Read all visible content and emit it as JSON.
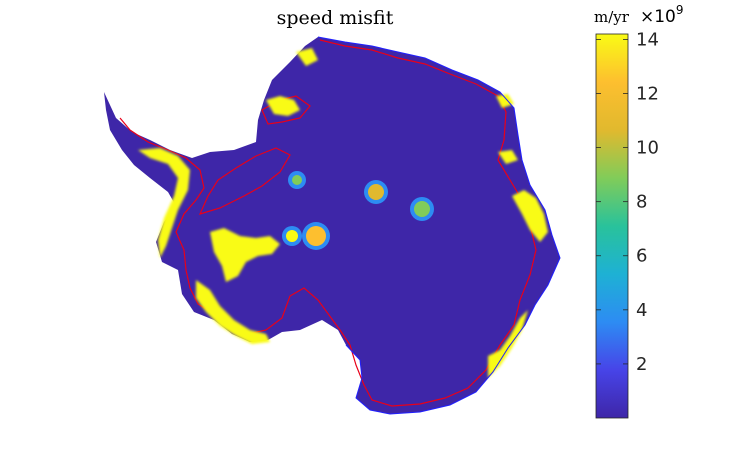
{
  "chart_data": {
    "type": "heatmap",
    "title": "speed misfit",
    "colorbar": {
      "unit_label": "m/yr",
      "multiplier_label": "×10",
      "multiplier_exponent": "9",
      "clim": [
        0,
        14.2
      ],
      "ticks": [
        2,
        4,
        6,
        8,
        10,
        12,
        14
      ],
      "tick_labels": [
        "2",
        "4",
        "6",
        "8",
        "10",
        "12",
        "14"
      ],
      "colormap": "parula",
      "colormap_stops": [
        "#3e26a8",
        "#4744e8",
        "#2d8cf3",
        "#1eb1d4",
        "#29c29b",
        "#81cc59",
        "#e1b92e",
        "#fdbf2f",
        "#f9fb15"
      ]
    },
    "background_value_color": "#3e26a8",
    "high_misfit_color": "#f9fb15",
    "grounding_line_color": "#e8001a",
    "coast_outline_color": "#2020ff",
    "hotspots": [
      {
        "value": 9.0
      },
      {
        "value": 10.5
      },
      {
        "value": 8.5
      },
      {
        "value": 13.0
      },
      {
        "value": 14.0
      }
    ]
  }
}
